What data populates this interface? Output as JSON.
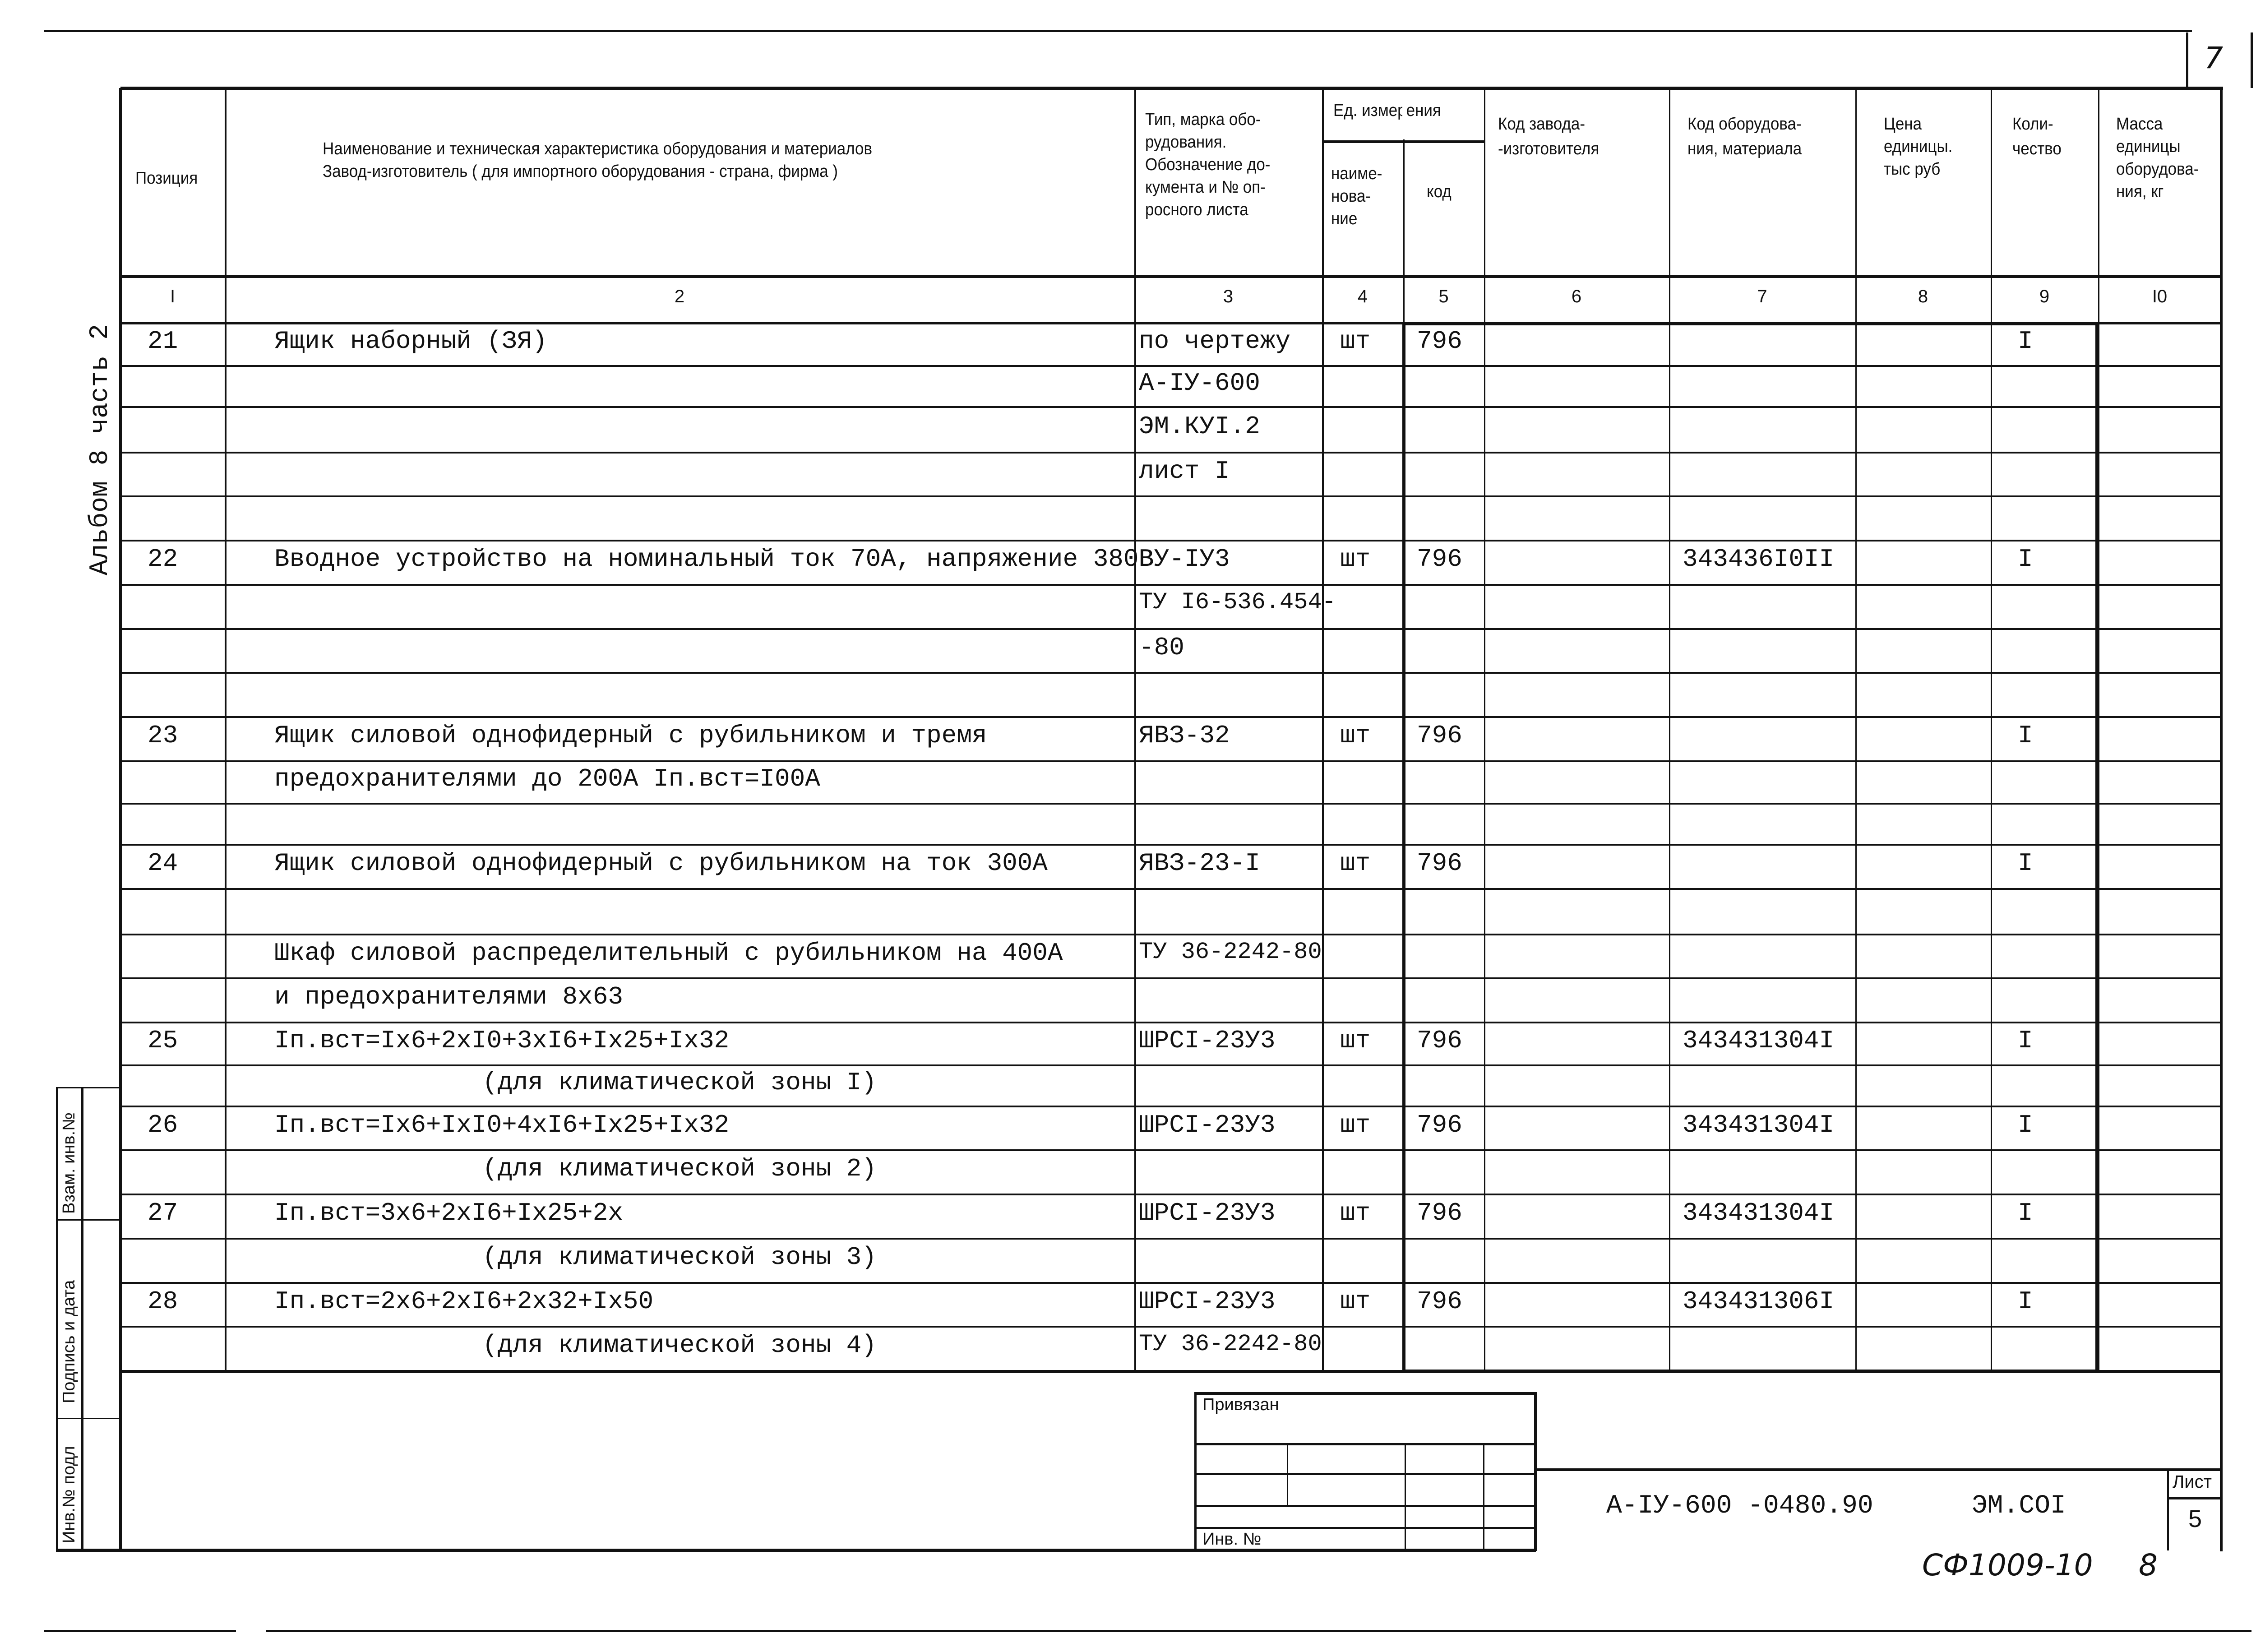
{
  "sheet_corner_number": "7",
  "side_label": "Альбом 8 часть 2",
  "side_stamp": [
    "Взам. инв.№",
    "Подпись и дата",
    "Инв.№ подл"
  ],
  "header": {
    "c1": "Позиция",
    "c2": [
      "Наименование и техническая характеристика оборудования и материалов",
      "Завод-изготовитель  ( для импортного оборудования - страна, фирма )"
    ],
    "c3": [
      "Тип, марка обо-",
      "рудования.",
      "Обозначение до-",
      "кумента и № оп-",
      "росного листа"
    ],
    "c45": "Ед. измерения",
    "c4": [
      "наиме-",
      "нова-",
      "ние"
    ],
    "c5": "код",
    "c6": [
      "Код завода-",
      "-изготовителя"
    ],
    "c7": [
      "Код оборудова-",
      "ния, материала"
    ],
    "c8": [
      "Цена",
      "единицы.",
      "тыс руб"
    ],
    "c9": [
      "Коли-",
      "чество"
    ],
    "c10": [
      "Масса",
      "единицы",
      "оборудова-",
      "ния, кг"
    ]
  },
  "column_numbers": [
    "I",
    "2",
    "3",
    "4",
    "5",
    "6",
    "7",
    "8",
    "9",
    "I0"
  ],
  "rows": [
    [
      "21",
      "Ящик наборный (ЗЯ)",
      "по чертежу",
      "шт",
      "796",
      "",
      "",
      "",
      "I",
      ""
    ],
    [
      "",
      "",
      "А-IУ-600",
      "",
      "",
      "",
      "",
      "",
      "",
      ""
    ],
    [
      "",
      "",
      "ЭМ.КУI.2",
      "",
      "",
      "",
      "",
      "",
      "",
      ""
    ],
    [
      "",
      "",
      "лист I",
      "",
      "",
      "",
      "",
      "",
      "",
      ""
    ],
    [
      "",
      "",
      "",
      "",
      "",
      "",
      "",
      "",
      "",
      ""
    ],
    [
      "22",
      "Вводное устройство на номинальный ток 70А, напряжение 380В",
      "ВУ-IУ3",
      "шт",
      "796",
      "",
      "343436I0II",
      "",
      "I",
      ""
    ],
    [
      "",
      "",
      "ТУ I6-536.454-",
      "",
      "",
      "",
      "",
      "",
      "",
      ""
    ],
    [
      "",
      "",
      "-80",
      "",
      "",
      "",
      "",
      "",
      "",
      ""
    ],
    [
      "",
      "",
      "",
      "",
      "",
      "",
      "",
      "",
      "",
      ""
    ],
    [
      "23",
      "Ящик силовой однофидерный с рубильником и тремя",
      "ЯВЗ-32",
      "шт",
      "796",
      "",
      "",
      "",
      "I",
      ""
    ],
    [
      "",
      "предохранителями до 200А Iп.вст=I00А",
      "",
      "",
      "",
      "",
      "",
      "",
      "",
      ""
    ],
    [
      "",
      "",
      "",
      "",
      "",
      "",
      "",
      "",
      "",
      ""
    ],
    [
      "24",
      "Ящик силовой однофидерный с рубильником на ток 300А",
      "ЯВЗ-23-I",
      "шт",
      "796",
      "",
      "",
      "",
      "I",
      ""
    ],
    [
      "",
      "",
      "",
      "",
      "",
      "",
      "",
      "",
      "",
      ""
    ],
    [
      "",
      "Шкаф силовой распределительный с рубильником на 400А",
      "ТУ 36-2242-80",
      "",
      "",
      "",
      "",
      "",
      "",
      ""
    ],
    [
      "",
      "и предохранителями 8х63",
      "",
      "",
      "",
      "",
      "",
      "",
      "",
      ""
    ],
    [
      "25",
      "Iп.вст=Iх6+2хI0+3хI6+Iх25+Iх32",
      "ШРСI-23У3",
      "шт",
      "796",
      "",
      "343431304I",
      "",
      "I",
      ""
    ],
    [
      "",
      "(для климатической зоны I)",
      "",
      "",
      "",
      "",
      "",
      "",
      "",
      ""
    ],
    [
      "26",
      "Iп.вст=Iх6+IхI0+4хI6+Iх25+Iх32",
      "ШРСI-23У3",
      "шт",
      "796",
      "",
      "343431304I",
      "",
      "I",
      ""
    ],
    [
      "",
      "(для климатической зоны 2)",
      "",
      "",
      "",
      "",
      "",
      "",
      "",
      ""
    ],
    [
      "27",
      "Iп.вст=3х6+2хI6+Iх25+2х",
      "ШРСI-23У3",
      "шт",
      "796",
      "",
      "343431304I",
      "",
      "I",
      ""
    ],
    [
      "",
      "(для климатической зоны 3)",
      "",
      "",
      "",
      "",
      "",
      "",
      "",
      ""
    ],
    [
      "28",
      "Iп.вст=2х6+2хI6+2х32+Iх50",
      "ШРСI-23У3",
      "шт",
      "796",
      "",
      "343431306I",
      "",
      "I",
      ""
    ],
    [
      "",
      "(для климатической зоны 4)",
      "ТУ 36-2242-80",
      "",
      "",
      "",
      "",
      "",
      "",
      ""
    ]
  ],
  "centered_rows": [
    17,
    19,
    21,
    23
  ],
  "title_block": {
    "bound_label": "Привязан",
    "inv_label": "Инв. №",
    "doc_code": "А-IУ-600 -0480.90",
    "sheet_code": "ЭМ.СОI",
    "sheet_label": "Лист",
    "sheet_number": "5"
  },
  "handwritten": {
    "code": "СФ1009-10",
    "page": "8"
  }
}
